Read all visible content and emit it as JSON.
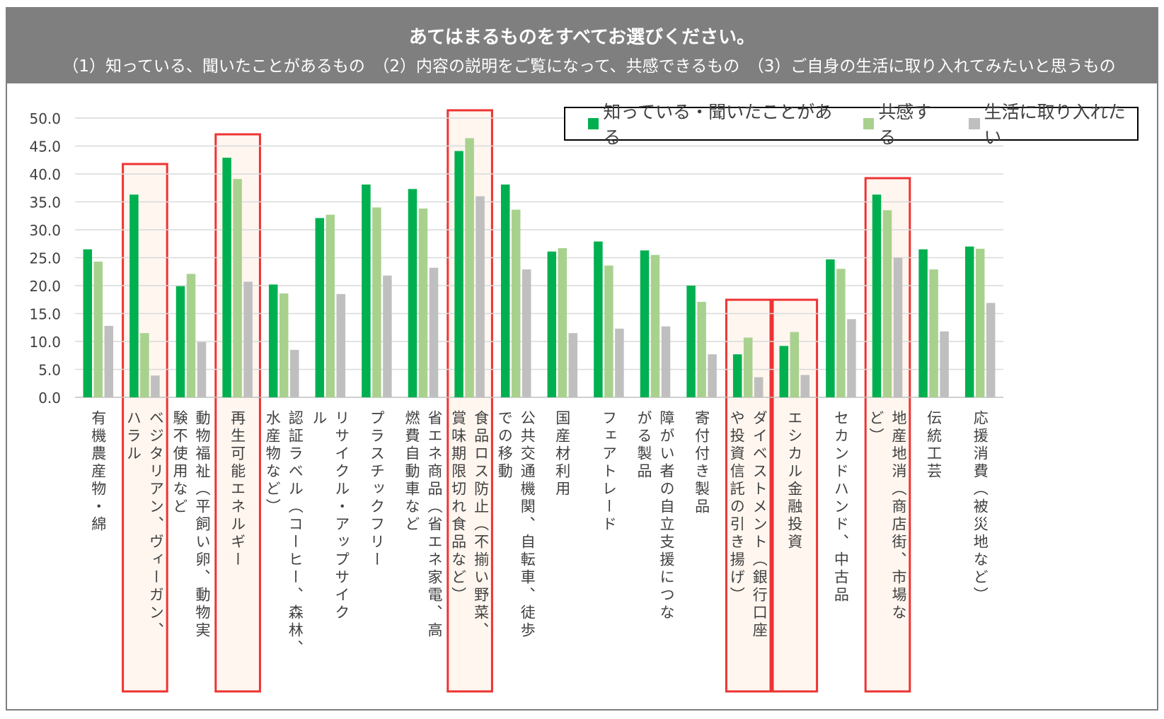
{
  "header": {
    "title": "あてはまるものをすべてお選びください。",
    "subtitle": "（1）知っている、聞いたことがあるもの　（2）内容の説明をご覧になって、共感できるもの　（3）ご自身の生活に取り入れてみたいと思うもの"
  },
  "colors": {
    "known": "#00b050",
    "empathy": "#a9d18e",
    "adopt": "#bfbfbf",
    "highlight": "#ee3333",
    "highlight_fill": "#fff6ef",
    "grid": "#d9d9d9"
  },
  "legend": [
    {
      "label": "知っている・聞いたことがある",
      "color": "#00b050"
    },
    {
      "label": "共感する",
      "color": "#a9d18e"
    },
    {
      "label": "生活に取り入れたい",
      "color": "#bfbfbf"
    }
  ],
  "chart_data": {
    "type": "bar",
    "ylim": [
      0,
      50
    ],
    "yticks": [
      "0.0",
      "5.0",
      "10.0",
      "15.0",
      "20.0",
      "25.0",
      "30.0",
      "35.0",
      "40.0",
      "45.0",
      "50.0"
    ],
    "grid": true,
    "legend_position": "top-right",
    "categories": [
      {
        "lines": [
          "有機農産物・綿"
        ],
        "highlight": false
      },
      {
        "lines": [
          "ベジタリアン、ヴィーガン、",
          "ハラル"
        ],
        "highlight": true
      },
      {
        "lines": [
          "動物福祉（平飼い卵、動物実",
          "験不使用など"
        ],
        "highlight": false
      },
      {
        "lines": [
          "再生可能エネルギー"
        ],
        "highlight": true
      },
      {
        "lines": [
          "認証ラベル（コーヒー、森林、",
          "水産物など）"
        ],
        "highlight": false
      },
      {
        "lines": [
          "リサイクル・アップサイク",
          "ル"
        ],
        "highlight": false
      },
      {
        "lines": [
          "プラスチックフリー"
        ],
        "highlight": false
      },
      {
        "lines": [
          "省エネ商品（省エネ家電、高",
          "燃費自動車など"
        ],
        "highlight": false
      },
      {
        "lines": [
          "食品ロス防止（不揃い野菜、",
          "賞味期限切れ食品など）"
        ],
        "highlight": true
      },
      {
        "lines": [
          "公共交通機関、自転車、徒歩",
          "での移動"
        ],
        "highlight": false
      },
      {
        "lines": [
          "国産材利用"
        ],
        "highlight": false
      },
      {
        "lines": [
          "フェアトレード"
        ],
        "highlight": false
      },
      {
        "lines": [
          "障がい者の自立支援につな",
          "がる製品"
        ],
        "highlight": false
      },
      {
        "lines": [
          "寄付付き製品"
        ],
        "highlight": false
      },
      {
        "lines": [
          "ダイベストメント（銀行口座",
          "や投資信託の引き揚げ）"
        ],
        "highlight": true
      },
      {
        "lines": [
          "エシカル金融投資"
        ],
        "highlight": true
      },
      {
        "lines": [
          "セカンドハンド、中古品"
        ],
        "highlight": false
      },
      {
        "lines": [
          "地産地消（商店街、市場な",
          "ど）"
        ],
        "highlight": true
      },
      {
        "lines": [
          "伝統工芸"
        ],
        "highlight": false
      },
      {
        "lines": [
          "応援消費（被災地など）"
        ],
        "highlight": false
      }
    ],
    "series": [
      {
        "name": "知っている・聞いたことがある",
        "values": [
          26.5,
          36.3,
          19.9,
          42.9,
          20.2,
          32.1,
          38.1,
          37.3,
          44.1,
          38.1,
          26.1,
          27.9,
          26.3,
          20.0,
          7.7,
          9.2,
          24.7,
          36.3,
          26.5,
          27.0
        ]
      },
      {
        "name": "共感する",
        "values": [
          24.3,
          11.5,
          22.1,
          39.1,
          18.6,
          32.7,
          34.0,
          33.8,
          46.4,
          33.6,
          26.7,
          23.6,
          25.5,
          17.1,
          10.7,
          11.7,
          23.0,
          33.5,
          22.9,
          26.6
        ]
      },
      {
        "name": "生活に取り入れたい",
        "values": [
          12.8,
          3.9,
          9.9,
          20.7,
          8.5,
          18.5,
          21.8,
          23.2,
          36.0,
          22.9,
          11.5,
          12.3,
          12.7,
          7.7,
          3.6,
          4.0,
          14.0,
          25.0,
          11.8,
          16.9
        ]
      }
    ]
  }
}
